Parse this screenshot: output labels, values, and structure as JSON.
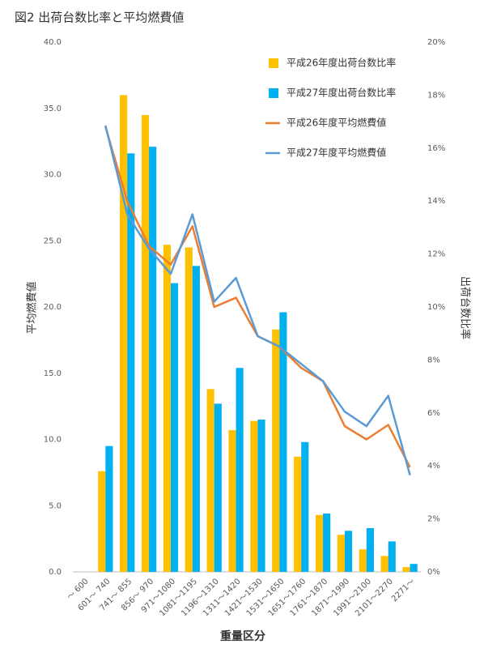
{
  "chart_data": {
    "type": "bar",
    "title": "図2 出荷台数比率と平均燃費値",
    "xlabel": "重量区分",
    "ylabel": "平均燃費値",
    "y2label": "出荷台数比率",
    "categories": [
      "～ 600",
      "601～ 740",
      "741～ 855",
      "856～ 970",
      "971～1080",
      "1081～1195",
      "1196～1310",
      "1311～1420",
      "1421～1530",
      "1531～1650",
      "1651～1760",
      "1761～1870",
      "1871～1990",
      "1991～2100",
      "2101～2270",
      "2271～"
    ],
    "series": [
      {
        "name": "平成26年度出荷台数比率",
        "type": "bar",
        "axis": "y2",
        "color": "#FFC000",
        "values": [
          null,
          3.8,
          18.0,
          17.25,
          12.35,
          12.25,
          6.9,
          5.35,
          5.7,
          9.15,
          4.35,
          2.15,
          1.4,
          0.85,
          0.6,
          0.18
        ]
      },
      {
        "name": "平成27年度出荷台数比率",
        "type": "bar",
        "axis": "y2",
        "color": "#00B0F0",
        "values": [
          null,
          4.75,
          15.8,
          16.05,
          10.9,
          11.55,
          6.35,
          7.7,
          5.75,
          9.8,
          4.9,
          2.2,
          1.55,
          1.65,
          1.15,
          0.3
        ]
      },
      {
        "name": "平成26年度平均燃費値",
        "type": "line",
        "axis": "y",
        "color": "#ED7D31",
        "values": [
          null,
          33.6,
          28.0,
          24.6,
          23.2,
          26.1,
          20.0,
          20.7,
          17.8,
          17.0,
          15.4,
          14.4,
          11.0,
          10.0,
          11.1,
          7.9
        ]
      },
      {
        "name": "平成27年度平均燃費値",
        "type": "line",
        "axis": "y",
        "color": "#5B9BD5",
        "values": [
          null,
          33.7,
          27.0,
          24.4,
          22.5,
          27.0,
          20.4,
          22.2,
          17.8,
          17.0,
          15.7,
          14.4,
          12.1,
          11.0,
          13.3,
          7.3
        ]
      }
    ],
    "ylim": [
      0,
      40
    ],
    "yticks": [
      {
        "value": 0,
        "label": "0.0"
      },
      {
        "value": 5,
        "label": "5.0"
      },
      {
        "value": 10,
        "label": "10.0"
      },
      {
        "value": 15,
        "label": "15.0"
      },
      {
        "value": 20,
        "label": "20.0"
      },
      {
        "value": 25,
        "label": "25.0"
      },
      {
        "value": 30,
        "label": "30.0"
      },
      {
        "value": 35,
        "label": "35.0"
      },
      {
        "value": 40,
        "label": "40.0"
      }
    ],
    "y2lim": [
      0,
      20
    ],
    "y2ticks": [
      {
        "value": 0,
        "label": "0%"
      },
      {
        "value": 2,
        "label": "2%"
      },
      {
        "value": 4,
        "label": "4%"
      },
      {
        "value": 6,
        "label": "6%"
      },
      {
        "value": 8,
        "label": "8%"
      },
      {
        "value": 10,
        "label": "10%"
      },
      {
        "value": 12,
        "label": "12%"
      },
      {
        "value": 14,
        "label": "14%"
      },
      {
        "value": 16,
        "label": "16%"
      },
      {
        "value": 18,
        "label": "18%"
      },
      {
        "value": 20,
        "label": "20%"
      }
    ],
    "grid": false,
    "legend": "top-right"
  }
}
